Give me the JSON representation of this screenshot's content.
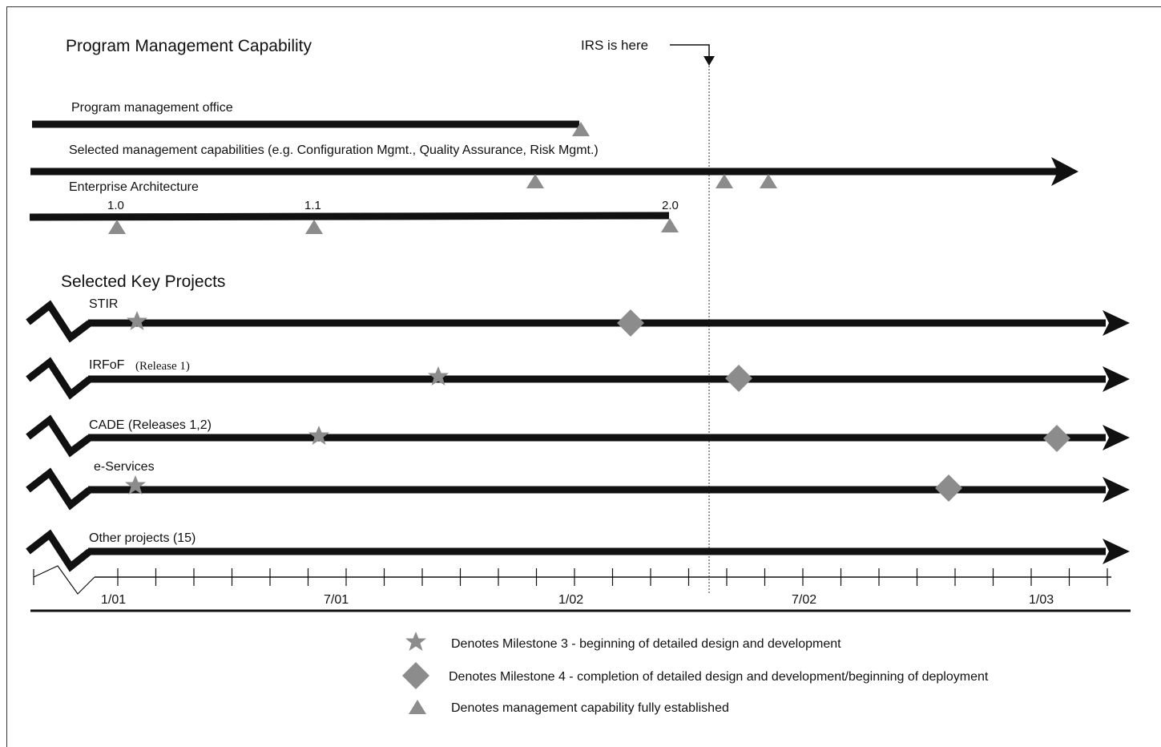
{
  "sections": {
    "program_management": "Program Management Capability",
    "key_projects": "Selected Key Projects"
  },
  "current_marker": {
    "label": "IRS is here"
  },
  "capabilities": [
    {
      "label": "Program management office",
      "version_labels": []
    },
    {
      "label": "Selected management capabilities (e.g. Configuration Mgmt., Quality Assurance, Risk Mgmt.)",
      "version_labels": []
    },
    {
      "label": "Enterprise Architecture",
      "version_labels": [
        "1.0",
        "1.1",
        "2.0"
      ]
    }
  ],
  "projects": [
    {
      "label": "STIR",
      "note": ""
    },
    {
      "label": "IRFoF",
      "note": "(Release 1)"
    },
    {
      "label": "CADE (Releases 1,2)",
      "note": ""
    },
    {
      "label": "e-Services",
      "note": ""
    },
    {
      "label": "Other projects (15)",
      "note": ""
    }
  ],
  "axis": {
    "tick_labels": [
      "1/01",
      "7/01",
      "1/02",
      "7/02",
      "1/03"
    ]
  },
  "legend": [
    {
      "symbol": "star-icon",
      "text": "Denotes Milestone 3 - beginning of detailed design and development"
    },
    {
      "symbol": "diamond-icon",
      "text": "Denotes Milestone 4 - completion of detailed design and development/beginning of deployment"
    },
    {
      "symbol": "triangle-icon",
      "text": "Denotes management capability fully established"
    }
  ],
  "colors": {
    "line": "#111111",
    "marker": "#8c8c8c"
  }
}
